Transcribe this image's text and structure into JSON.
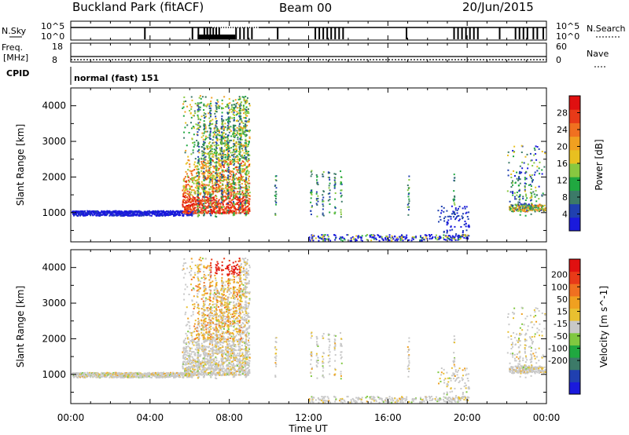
{
  "header": {
    "title": "Buckland Park (fitACF)",
    "beam": "Beam 00",
    "date": "20/Jun/2015"
  },
  "panels": {
    "nsky_label": "N.Sky",
    "nsearch_label": "N.Search",
    "nsky_ticks": [
      "10^5",
      "10^0"
    ],
    "nsearch_ticks": [
      "10^5",
      "10^0"
    ],
    "freq_label": "Freq.",
    "freq_unit": "[MHz]",
    "freq_ticks": [
      "18",
      "8"
    ],
    "nave_label": "Nave",
    "nave_ticks": [
      "60",
      "0"
    ],
    "cpid_label": "CPID",
    "cpid_text": "normal (fast) 151"
  },
  "colors": {
    "power_scale": [
      "#1a1adc",
      "#2040b0",
      "#3c7a68",
      "#20a840",
      "#88c840",
      "#e8c020",
      "#f0a020",
      "#f07020",
      "#e83a18",
      "#e01010"
    ],
    "velocity_scale": [
      "#1a1adc",
      "#2040b0",
      "#3c7a68",
      "#20a840",
      "#80c840",
      "#c8c8c8",
      "#e8c030",
      "#f0a020",
      "#f07020",
      "#e83a18",
      "#e01010"
    ]
  },
  "chart_data": [
    {
      "type": "heatmap",
      "name": "power",
      "ylabel": "Slant Range [km]",
      "xlabel": "",
      "xlim": [
        "00:00",
        "00:00"
      ],
      "ylim": [
        180,
        4500
      ],
      "x_ticks": [
        "00:00",
        "04:00",
        "08:00",
        "12:00",
        "16:00",
        "20:00",
        "00:00"
      ],
      "y_ticks": [
        1000,
        2000,
        3000,
        4000
      ],
      "colorbar": {
        "label": "Power [dB]",
        "ticks": [
          4,
          8,
          12,
          16,
          20,
          24,
          28
        ]
      }
    },
    {
      "type": "heatmap",
      "name": "velocity",
      "ylabel": "Slant Range [km]",
      "xlabel": "Time UT",
      "xlim": [
        "00:00",
        "00:00"
      ],
      "ylim": [
        180,
        4500
      ],
      "x_ticks": [
        "00:00",
        "04:00",
        "08:00",
        "12:00",
        "16:00",
        "20:00",
        "00:00"
      ],
      "y_ticks": [
        1000,
        2000,
        3000,
        4000
      ],
      "colorbar": {
        "label": "Velocity [m s^-1]",
        "ticks": [
          200,
          100,
          50,
          15,
          -15,
          -50,
          -100,
          -200
        ]
      }
    }
  ]
}
